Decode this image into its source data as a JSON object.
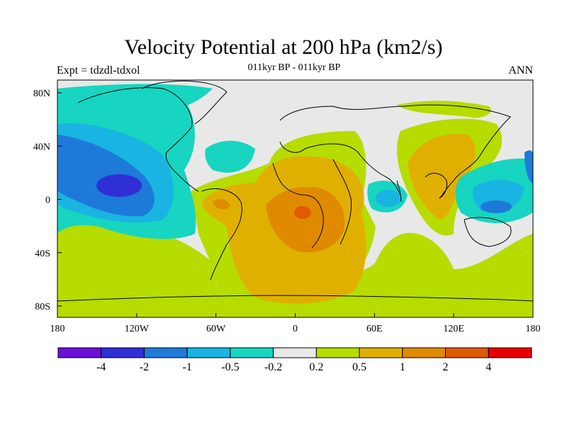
{
  "title": "Velocity Potential at 200 hPa (km2/s)",
  "subtitle": "011kyr BP - 011kyr BP",
  "left_string": "Expt = tdzdl-tdxol",
  "right_string": "ANN",
  "map": {
    "projection": "cylindrical-equidistant",
    "lon_labels": [
      "180",
      "120W",
      "60W",
      "0",
      "60E",
      "120E",
      "180"
    ],
    "lat_labels": [
      "80N",
      "40N",
      "0",
      "40S",
      "80S"
    ],
    "levels": [
      "-4",
      "-2",
      "-1",
      "-0.5",
      "-0.2",
      "0.2",
      "0.5",
      "1",
      "2",
      "4"
    ],
    "colors": [
      "#6a0fd8",
      "#2f2fd5",
      "#1e7ad8",
      "#19b4e2",
      "#17d5c0",
      "#e8e8e8",
      "#b6dc00",
      "#e0b000",
      "#e08a00",
      "#e05a00",
      "#e80000"
    ]
  }
}
